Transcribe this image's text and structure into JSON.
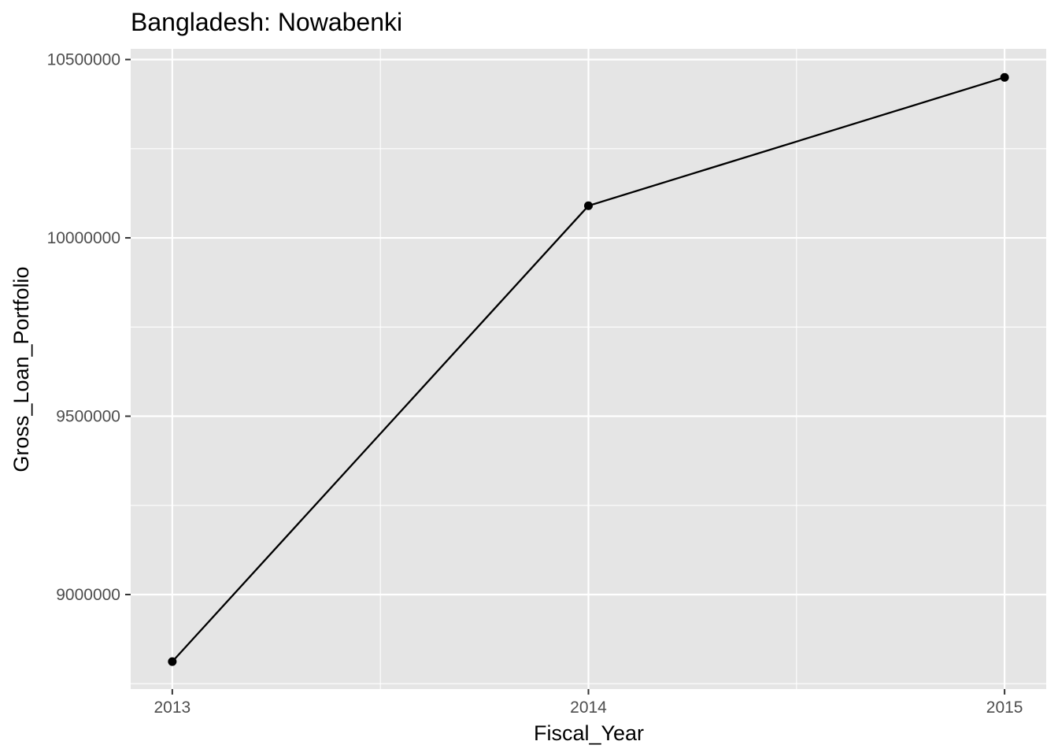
{
  "chart_data": {
    "type": "line",
    "title": "Bangladesh:  Nowabenki",
    "xlabel": "Fiscal_Year",
    "ylabel": "Gross_Loan_Portfolio",
    "x": [
      2013,
      2014,
      2015
    ],
    "series": [
      {
        "values": [
          8812000,
          10090000,
          10450000
        ]
      }
    ],
    "x_ticks": [
      "2013",
      "2014",
      "2015"
    ],
    "y_ticks": [
      "9000000",
      "9500000",
      "10000000",
      "10500000"
    ],
    "xlim": [
      2012.9,
      2015.1
    ],
    "ylim": [
      8735000,
      10530000
    ],
    "grid": true,
    "legend": "none",
    "colors": {
      "panel": "#e5e5e5",
      "grid": "#ffffff",
      "line": "#000000",
      "tick_text": "#4d4d4d"
    }
  }
}
